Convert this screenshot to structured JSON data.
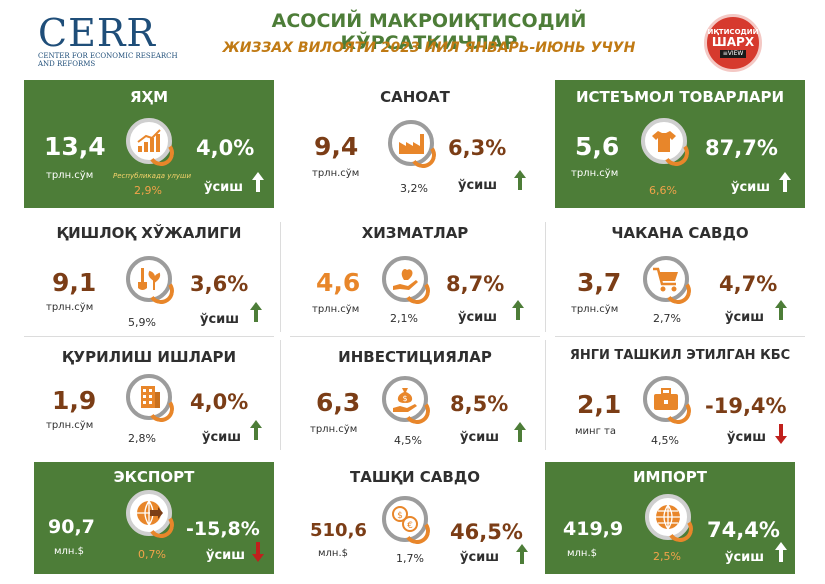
{
  "header": {
    "logo_word": "CERR",
    "logo_sub": "Center for Economic Research and Reforms",
    "title": "АСОСИЙ МАКРОИҚТИСОДИЙ КЎРСАТКИЧЛАР",
    "subtitle": "ЖИЗЗАХ ВИЛОЯТИ 2023 ЙИЛ ЯНВАРЬ-ИЮНЬ УЧУН",
    "badge_top": "ИҚТИСОДИЙ",
    "badge_mid": "ШАРХ",
    "badge_bottom": "≡VIEW"
  },
  "growth_label": "ўсиш",
  "colors": {
    "green": "#4d7d38",
    "brown": "#7b3d16",
    "orange": "#e8862a",
    "up_arrow": "#4d7d38",
    "down_arrow": "#c0201c"
  },
  "tiles": {
    "yaim": {
      "title": "ЯҲМ",
      "value": "13,4",
      "unit": "трлн.сўм",
      "pct": "4,0%",
      "share": "2,9%",
      "note": "Республикада улуши",
      "icon": "growth-chart-icon",
      "trend": "up"
    },
    "sanoat": {
      "title": "САНОАТ",
      "value": "9,4",
      "unit": "трлн.сўм",
      "pct": "6,3%",
      "share": "3,2%",
      "icon": "factory-icon",
      "trend": "up"
    },
    "isteymol": {
      "title": "ИСТЕЪМОЛ ТОВАРЛАРИ",
      "value": "5,6",
      "unit": "трлн.сўм",
      "pct": "87,7%",
      "share": "6,6%",
      "icon": "tshirt-icon",
      "trend": "up"
    },
    "qishloq": {
      "title": "ҚИШЛОҚ ХЎЖАЛИГИ",
      "value": "9,1",
      "unit": "трлн.сўм",
      "pct": "3,6%",
      "share": "5,9%",
      "icon": "plant-shovel-icon",
      "trend": "up"
    },
    "xizmat": {
      "title": "ХИЗМАТЛАР",
      "value": "4,6",
      "unit": "трлн.сўм",
      "pct": "8,7%",
      "share": "2,1%",
      "icon": "hand-service-icon",
      "trend": "up"
    },
    "chakana": {
      "title": "ЧАКАНА САВДО",
      "value": "3,7",
      "unit": "трлн.сўм",
      "pct": "4,7%",
      "share": "2,7%",
      "icon": "shopping-cart-icon",
      "trend": "up"
    },
    "qurilish": {
      "title": "ҚУРИЛИШ ИШЛАРИ",
      "value": "1,9",
      "unit": "трлн.сўм",
      "pct": "4,0%",
      "share": "2,8%",
      "icon": "building-icon",
      "trend": "up"
    },
    "invest": {
      "title": "ИНВЕСТИЦИЯЛАР",
      "value": "6,3",
      "unit": "трлн.сўм",
      "pct": "8,5%",
      "share": "4,5%",
      "icon": "money-bag-hand-icon",
      "trend": "up"
    },
    "kbs": {
      "title": "ЯНГИ ТАШКИЛ ЭТИЛГАН КБС",
      "value": "2,1",
      "unit": "минг та",
      "pct": "-19,4%",
      "share": "4,5%",
      "icon": "briefcase-icon",
      "trend": "down"
    },
    "eksport": {
      "title": "ЭКСПОРТ",
      "value": "90,7",
      "unit": "млн.$",
      "pct": "-15,8%",
      "share": "0,7%",
      "icon": "globe-export-icon",
      "trend": "down"
    },
    "tashqi": {
      "title": "ТАШҚИ САВДО",
      "value": "510,6",
      "unit": "млн.$",
      "pct": "46,5%",
      "share": "1,7%",
      "icon": "currency-exchange-icon",
      "trend": "up"
    },
    "import": {
      "title": "ИМПОРТ",
      "value": "419,9",
      "unit": "млн.$",
      "pct": "74,4%",
      "share": "2,5%",
      "icon": "globe-import-icon",
      "trend": "up"
    }
  }
}
